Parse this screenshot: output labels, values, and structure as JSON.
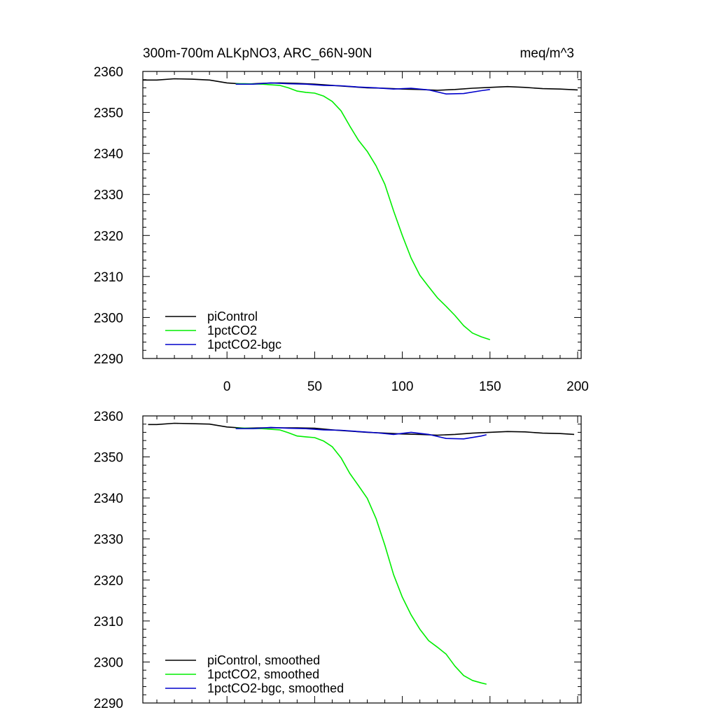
{
  "chart_data": [
    {
      "type": "line",
      "title": "300m-700m ALKpNO3, ARC_66N-90N",
      "units": "meq/m^3",
      "xlim": [
        -48,
        202
      ],
      "ylim": [
        2290,
        2360
      ],
      "xticks": [
        0,
        50,
        100,
        150,
        200
      ],
      "xtick_labels": [
        "0",
        "50",
        "100",
        "150",
        "200"
      ],
      "yticks": [
        2290,
        2300,
        2310,
        2320,
        2330,
        2340,
        2350,
        2360
      ],
      "ytick_labels": [
        "2290",
        "2300",
        "2310",
        "2320",
        "2330",
        "2340",
        "2350",
        "2360"
      ],
      "legend_position": "bottom-left",
      "series": [
        {
          "name": "piControl",
          "color": "#000000",
          "x": [
            -48,
            -40,
            -30,
            -20,
            -10,
            0,
            10,
            20,
            30,
            40,
            50,
            60,
            70,
            80,
            90,
            100,
            110,
            120,
            130,
            140,
            150,
            160,
            170,
            180,
            190,
            200
          ],
          "y": [
            2357.9,
            2357.9,
            2358.2,
            2358.1,
            2357.9,
            2357.2,
            2356.9,
            2357.1,
            2357.2,
            2357.1,
            2356.9,
            2356.6,
            2356.3,
            2356.0,
            2355.9,
            2355.7,
            2355.6,
            2355.4,
            2355.6,
            2355.9,
            2356.1,
            2356.3,
            2356.1,
            2355.8,
            2355.7,
            2355.5
          ]
        },
        {
          "name": "1pctCO2",
          "color": "#00ee00",
          "x": [
            5,
            10,
            20,
            30,
            35,
            40,
            45,
            50,
            55,
            60,
            65,
            70,
            75,
            80,
            85,
            90,
            95,
            100,
            105,
            110,
            115,
            120,
            125,
            130,
            135,
            140,
            145,
            150
          ],
          "y": [
            2357.0,
            2357.0,
            2356.9,
            2356.6,
            2356.0,
            2355.2,
            2354.9,
            2354.7,
            2354.0,
            2352.7,
            2350.4,
            2346.7,
            2343.2,
            2340.5,
            2337.0,
            2332.5,
            2326.0,
            2320.0,
            2314.5,
            2310.3,
            2307.5,
            2304.8,
            2302.7,
            2300.5,
            2298.0,
            2296.2,
            2295.3,
            2294.6
          ]
        },
        {
          "name": "1pctCO2-bgc",
          "color": "#0000cc",
          "x": [
            5,
            15,
            25,
            35,
            45,
            55,
            65,
            75,
            85,
            95,
            105,
            115,
            125,
            135,
            145,
            150
          ],
          "y": [
            2356.9,
            2356.9,
            2357.2,
            2357.0,
            2356.9,
            2356.6,
            2356.5,
            2356.2,
            2356.0,
            2355.7,
            2355.9,
            2355.5,
            2354.5,
            2354.6,
            2355.3,
            2355.6
          ]
        }
      ]
    },
    {
      "type": "line",
      "title": "",
      "units": "",
      "xlim": [
        -48,
        202
      ],
      "ylim": [
        2290,
        2360
      ],
      "xticks": [
        0,
        50,
        100,
        150,
        200
      ],
      "xtick_labels": [],
      "yticks": [
        2290,
        2300,
        2310,
        2320,
        2330,
        2340,
        2350,
        2360
      ],
      "ytick_labels": [
        "2290",
        "2300",
        "2310",
        "2320",
        "2330",
        "2340",
        "2350",
        "2360"
      ],
      "legend_position": "bottom-left",
      "series": [
        {
          "name": "piControl, smoothed",
          "color": "#000000",
          "x": [
            -45,
            -40,
            -30,
            -20,
            -10,
            0,
            10,
            20,
            30,
            40,
            50,
            60,
            70,
            80,
            90,
            100,
            110,
            120,
            130,
            140,
            150,
            160,
            170,
            180,
            190,
            198
          ],
          "y": [
            2357.9,
            2357.9,
            2358.2,
            2358.1,
            2358.0,
            2357.3,
            2357.0,
            2357.1,
            2357.1,
            2357.1,
            2357.0,
            2356.6,
            2356.3,
            2356.0,
            2355.8,
            2355.6,
            2355.5,
            2355.3,
            2355.5,
            2355.8,
            2356.0,
            2356.2,
            2356.1,
            2355.8,
            2355.7,
            2355.5
          ]
        },
        {
          "name": "1pctCO2, smoothed",
          "color": "#00ee00",
          "x": [
            5,
            10,
            20,
            30,
            35,
            40,
            45,
            50,
            55,
            60,
            65,
            70,
            75,
            80,
            85,
            90,
            95,
            100,
            105,
            110,
            115,
            120,
            125,
            130,
            135,
            140,
            145,
            148
          ],
          "y": [
            2357.0,
            2357.0,
            2356.9,
            2356.6,
            2355.9,
            2355.1,
            2354.9,
            2354.7,
            2353.9,
            2352.5,
            2349.8,
            2346.0,
            2343.0,
            2339.9,
            2335.0,
            2328.5,
            2321.3,
            2315.8,
            2311.5,
            2308.0,
            2305.2,
            2303.6,
            2301.9,
            2299.0,
            2296.7,
            2295.5,
            2294.9,
            2294.6
          ]
        },
        {
          "name": "1pctCO2-bgc, smoothed",
          "color": "#0000cc",
          "x": [
            5,
            15,
            25,
            35,
            45,
            55,
            65,
            75,
            85,
            95,
            105,
            115,
            125,
            135,
            145,
            148
          ],
          "y": [
            2356.9,
            2356.9,
            2357.2,
            2357.0,
            2356.9,
            2356.6,
            2356.5,
            2356.2,
            2355.9,
            2355.5,
            2356.0,
            2355.5,
            2354.5,
            2354.4,
            2355.1,
            2355.4
          ]
        }
      ]
    }
  ]
}
